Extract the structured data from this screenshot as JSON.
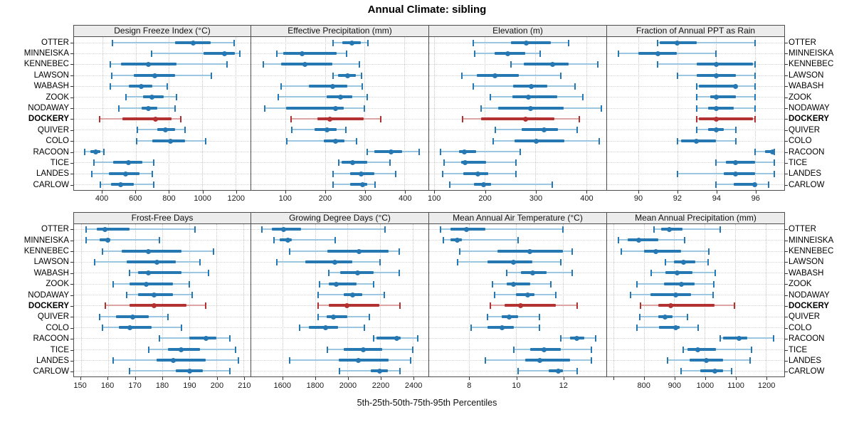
{
  "title": "Annual Climate: sibling",
  "caption": "5th-25th-50th-75th-95th Percentiles",
  "sites": [
    "OTTER",
    "MINNEISKA",
    "KENNEBEC",
    "LAWSON",
    "WABASH",
    "ZOOK",
    "NODAWAY",
    "DOCKERY",
    "QUIVER",
    "COLO",
    "RACOON",
    "TICE",
    "LANDES",
    "CARLOW"
  ],
  "highlight_site": "DOCKERY",
  "colors": {
    "normal": "#2678b2",
    "normal_range": "#9dc7e0",
    "highlight": "#b43132",
    "highlight_range": "#dda4a4",
    "grid": "#c9c9c9",
    "strip_bg": "#ececec",
    "border": "#4d4d4d"
  },
  "chart_data": {
    "type": "dotplot-percentiles",
    "percentiles": [
      5,
      25,
      50,
      75,
      95
    ],
    "layout": "2 rows x 4 cols",
    "grid": "dotted",
    "panels": [
      {
        "title": "Design Freeze Index (°C)",
        "xlim": [
          230,
          1290
        ],
        "ticks": [
          400,
          600,
          800,
          1000,
          1200
        ],
        "values": [
          [
            460,
            835,
            945,
            1050,
            1190
          ],
          [
            695,
            1010,
            1135,
            1195,
            1225
          ],
          [
            450,
            510,
            675,
            845,
            1150
          ],
          [
            455,
            590,
            715,
            835,
            1055
          ],
          [
            450,
            560,
            635,
            700,
            790
          ],
          [
            540,
            645,
            700,
            770,
            845
          ],
          [
            500,
            635,
            675,
            730,
            835
          ],
          [
            385,
            520,
            720,
            815,
            870
          ],
          [
            610,
            730,
            780,
            835,
            895
          ],
          [
            605,
            700,
            810,
            895,
            1020
          ],
          [
            295,
            330,
            362,
            390,
            410
          ],
          [
            350,
            465,
            558,
            640,
            710
          ],
          [
            335,
            440,
            540,
            625,
            700
          ],
          [
            390,
            452,
            510,
            590,
            710
          ]
        ]
      },
      {
        "title": "Effective Precipitation (mm)",
        "xlim": [
          15,
          460
        ],
        "ticks": [
          100,
          200,
          300,
          400
        ],
        "values": [
          [
            220,
            243,
            267,
            290,
            308
          ],
          [
            80,
            95,
            142,
            230,
            254
          ],
          [
            45,
            90,
            150,
            218,
            286
          ],
          [
            220,
            233,
            258,
            277,
            292
          ],
          [
            90,
            160,
            220,
            257,
            294
          ],
          [
            83,
            205,
            239,
            268,
            307
          ],
          [
            49,
            102,
            227,
            248,
            300
          ],
          [
            115,
            182,
            212,
            298,
            340
          ],
          [
            116,
            174,
            205,
            230,
            252
          ],
          [
            105,
            197,
            227,
            250,
            279
          ],
          [
            306,
            325,
            366,
            393,
            437
          ],
          [
            235,
            242,
            270,
            307,
            363
          ],
          [
            221,
            263,
            292,
            325,
            377
          ],
          [
            221,
            263,
            294,
            307,
            326
          ]
        ]
      },
      {
        "title": "Elevation (m)",
        "xlim": [
          90,
          440
        ],
        "ticks": [
          100,
          200,
          300,
          400
        ],
        "values": [
          [
            177,
            252,
            282,
            331,
            366
          ],
          [
            180,
            219,
            245,
            280,
            309
          ],
          [
            252,
            277,
            334,
            366,
            423
          ],
          [
            155,
            184,
            220,
            267,
            350
          ],
          [
            177,
            256,
            292,
            324,
            378
          ],
          [
            211,
            254,
            286,
            343,
            394
          ],
          [
            192,
            226,
            291,
            355,
            430
          ],
          [
            156,
            193,
            281,
            338,
            387
          ],
          [
            221,
            273,
            317,
            345,
            383
          ],
          [
            217,
            259,
            301,
            357,
            426
          ],
          [
            113,
            149,
            159,
            183,
            270
          ],
          [
            119,
            153,
            161,
            202,
            261
          ],
          [
            117,
            158,
            186,
            206,
            261
          ],
          [
            131,
            179,
            197,
            212,
            333
          ]
        ]
      },
      {
        "title": "Fraction of Annual PPT as Rain",
        "xlim": [
          88.4,
          97.5
        ],
        "ticks": [
          90,
          92,
          94,
          96
        ],
        "values": [
          [
            91,
            91.1,
            92,
            93,
            96
          ],
          [
            89,
            90,
            91,
            92,
            94
          ],
          [
            91,
            93,
            94,
            95.9,
            96
          ],
          [
            92,
            93,
            94,
            95,
            96
          ],
          [
            93,
            93.1,
            95,
            95.1,
            96
          ],
          [
            93,
            93.7,
            94,
            95,
            96
          ],
          [
            93,
            93.6,
            94,
            94.9,
            96
          ],
          [
            93,
            93.1,
            94,
            95.9,
            96
          ],
          [
            93,
            93.6,
            94,
            94.4,
            95
          ],
          [
            92,
            92.2,
            93,
            94,
            95
          ],
          [
            96,
            96.5,
            96.9,
            96.95,
            97
          ],
          [
            94,
            94.5,
            95,
            96,
            97
          ],
          [
            92,
            94.4,
            95,
            96,
            97
          ],
          [
            94,
            94.9,
            96,
            96,
            96.7
          ]
        ]
      },
      {
        "title": "Frost-Free Days",
        "xlim": [
          147.5,
          212.5
        ],
        "ticks": [
          150,
          160,
          170,
          180,
          190,
          200,
          210
        ],
        "values": [
          [
            152,
            156,
            159,
            168,
            192
          ],
          [
            152,
            157,
            160,
            161,
            179
          ],
          [
            158,
            165,
            175,
            187,
            199
          ],
          [
            155,
            167,
            178,
            185,
            194
          ],
          [
            168,
            171,
            175,
            187,
            197
          ],
          [
            162,
            168,
            174,
            184,
            190
          ],
          [
            167,
            171,
            177,
            184,
            191
          ],
          [
            159,
            168,
            177,
            189,
            196
          ],
          [
            157,
            163,
            169,
            175,
            182
          ],
          [
            158,
            164,
            168,
            176,
            187
          ],
          [
            179,
            190,
            196,
            200,
            205
          ],
          [
            175,
            182,
            187,
            194,
            207
          ],
          [
            162,
            178,
            184,
            196,
            208
          ],
          [
            168,
            185,
            190,
            195,
            205
          ]
        ]
      },
      {
        "title": "Growing Degree Days (°C)",
        "xlim": [
          1410,
          2495
        ],
        "ticks": [
          1600,
          1800,
          2000,
          2200,
          2400
        ],
        "values": [
          [
            1475,
            1535,
            1610,
            1715,
            2230
          ],
          [
            1550,
            1585,
            1635,
            1660,
            1925
          ],
          [
            1645,
            1875,
            2070,
            2250,
            2315
          ],
          [
            1565,
            1740,
            1920,
            2030,
            2200
          ],
          [
            1885,
            1955,
            2060,
            2160,
            2315
          ],
          [
            1830,
            1885,
            1930,
            2055,
            2160
          ],
          [
            1820,
            1975,
            2030,
            2090,
            2225
          ],
          [
            1820,
            1885,
            1995,
            2195,
            2320
          ],
          [
            1820,
            1870,
            1915,
            2000,
            2135
          ],
          [
            1705,
            1765,
            1865,
            1940,
            2105
          ],
          [
            2160,
            2175,
            2303,
            2325,
            2430
          ],
          [
            1875,
            1975,
            2095,
            2210,
            2400
          ],
          [
            1645,
            1945,
            2065,
            2250,
            2385
          ],
          [
            1950,
            2140,
            2195,
            2245,
            2320
          ]
        ]
      },
      {
        "title": "Mean Annual Air Temperature (°C)",
        "xlim": [
          6.3,
          13.85
        ],
        "ticks": [
          8,
          10,
          12
        ],
        "values": [
          [
            6.8,
            7.2,
            7.9,
            8.7,
            12.0
          ],
          [
            6.9,
            7.2,
            7.5,
            7.7,
            10.1
          ],
          [
            7.6,
            9.2,
            10.6,
            12.0,
            12.4
          ],
          [
            7.5,
            8.8,
            9.9,
            10.7,
            11.9
          ],
          [
            9.6,
            10.2,
            10.7,
            11.3,
            12.4
          ],
          [
            9.0,
            9.6,
            9.9,
            10.6,
            11.5
          ],
          [
            9.1,
            10.0,
            10.5,
            10.8,
            11.7
          ],
          [
            8.9,
            9.5,
            10.2,
            11.7,
            12.6
          ],
          [
            8.8,
            9.4,
            9.7,
            10.1,
            11.0
          ],
          [
            8.1,
            8.8,
            9.4,
            9.9,
            11.0
          ],
          [
            11.9,
            12.3,
            12.6,
            12.9,
            13.4
          ],
          [
            9.9,
            10.6,
            11.2,
            11.9,
            13.2
          ],
          [
            8.7,
            10.4,
            11.0,
            12.3,
            13.2
          ],
          [
            10.1,
            11.4,
            11.8,
            12.0,
            12.6
          ]
        ]
      },
      {
        "title": "Mean Annual Precipitation (mm)",
        "xlim": [
          680,
          1260
        ],
        "ticks": [
          700,
          800,
          900,
          1000,
          1100,
          1200
        ],
        "tick_labels": [
          "",
          "800",
          "900",
          "1000",
          "1100",
          "1200"
        ],
        "values": [
          [
            833,
            856,
            884,
            926,
            1050
          ],
          [
            718,
            748,
            784,
            848,
            933
          ],
          [
            727,
            800,
            840,
            923,
            1012
          ],
          [
            870,
            900,
            930,
            970,
            1010
          ],
          [
            825,
            870,
            910,
            960,
            1035
          ],
          [
            778,
            867,
            923,
            967,
            1030
          ],
          [
            757,
            822,
            904,
            954,
            1026
          ],
          [
            790,
            848,
            888,
            1032,
            1096
          ],
          [
            788,
            848,
            871,
            895,
            943
          ],
          [
            778,
            851,
            905,
            918,
            978
          ],
          [
            1050,
            1060,
            1112,
            1140,
            1226
          ],
          [
            929,
            943,
            978,
            1036,
            1153
          ],
          [
            879,
            950,
            1005,
            1060,
            1148
          ],
          [
            923,
            985,
            1032,
            1060,
            1088
          ]
        ]
      }
    ]
  }
}
